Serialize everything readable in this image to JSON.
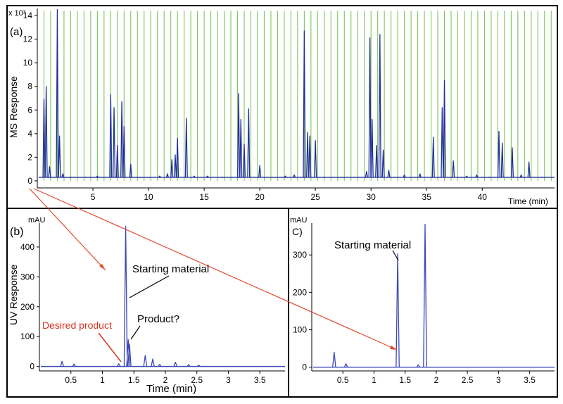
{
  "colors": {
    "ms_trace": "#1f2f9a",
    "uv_trace": "#3b47b8",
    "grid_lines": "#7cc45a",
    "arrow": "#e24a2b",
    "red_label": "#d7301f",
    "axis": "#000000"
  },
  "chart_data": [
    {
      "id": "a",
      "type": "line",
      "panel_label": "(a)",
      "ylabel": "MS Response",
      "y_multiplier": "x 10³",
      "xlabel": "Time (min)",
      "xlim": [
        0,
        46.5
      ],
      "ylim": [
        -0.6,
        14.6
      ],
      "x_ticks": [
        5,
        10,
        15,
        20,
        25,
        30,
        35,
        40
      ],
      "x_tick_labels": [
        "5",
        "10",
        "15",
        "20",
        "25",
        "30",
        "35",
        "40"
      ],
      "y_ticks": [
        0,
        2,
        4,
        6,
        8,
        10,
        12,
        14
      ],
      "y_tick_labels": [
        "0",
        "2",
        "4",
        "6",
        "8",
        "10",
        "12",
        "14"
      ],
      "grid_x_start": 0.6,
      "grid_x_step": 0.6,
      "grid_top": 14.4,
      "peaks": [
        {
          "x": 0.6,
          "y": 6.9
        },
        {
          "x": 0.8,
          "y": 8.0
        },
        {
          "x": 1.1,
          "y": 1.2
        },
        {
          "x": 1.8,
          "y": 14.5
        },
        {
          "x": 2.0,
          "y": 3.8
        },
        {
          "x": 2.3,
          "y": 0.6
        },
        {
          "x": 3.0,
          "y": 0.3
        },
        {
          "x": 4.4,
          "y": 0.3
        },
        {
          "x": 5.4,
          "y": 0.4
        },
        {
          "x": 6.6,
          "y": 7.3
        },
        {
          "x": 6.9,
          "y": 6.2
        },
        {
          "x": 7.2,
          "y": 3.0
        },
        {
          "x": 7.6,
          "y": 6.7
        },
        {
          "x": 7.8,
          "y": 4.6
        },
        {
          "x": 8.4,
          "y": 1.4
        },
        {
          "x": 9.2,
          "y": 0.3
        },
        {
          "x": 11.0,
          "y": 0.4
        },
        {
          "x": 11.7,
          "y": 0.6
        },
        {
          "x": 12.1,
          "y": 1.8
        },
        {
          "x": 12.4,
          "y": 2.2
        },
        {
          "x": 12.6,
          "y": 3.6
        },
        {
          "x": 13.4,
          "y": 5.3
        },
        {
          "x": 14.1,
          "y": 0.4
        },
        {
          "x": 15.3,
          "y": 0.4
        },
        {
          "x": 16.6,
          "y": 0.3
        },
        {
          "x": 18.1,
          "y": 7.4
        },
        {
          "x": 18.3,
          "y": 5.2
        },
        {
          "x": 18.6,
          "y": 3.1
        },
        {
          "x": 19.0,
          "y": 6.1
        },
        {
          "x": 20.0,
          "y": 1.3
        },
        {
          "x": 22.3,
          "y": 0.4
        },
        {
          "x": 23.1,
          "y": 0.5
        },
        {
          "x": 24.0,
          "y": 12.7
        },
        {
          "x": 24.3,
          "y": 4.1
        },
        {
          "x": 24.5,
          "y": 3.8
        },
        {
          "x": 25.0,
          "y": 3.4
        },
        {
          "x": 25.8,
          "y": 0.3
        },
        {
          "x": 29.6,
          "y": 0.8
        },
        {
          "x": 29.9,
          "y": 12.1
        },
        {
          "x": 30.1,
          "y": 5.2
        },
        {
          "x": 30.5,
          "y": 3.0
        },
        {
          "x": 30.8,
          "y": 12.4
        },
        {
          "x": 31.1,
          "y": 2.6
        },
        {
          "x": 31.6,
          "y": 0.9
        },
        {
          "x": 33.0,
          "y": 0.5
        },
        {
          "x": 34.4,
          "y": 0.6
        },
        {
          "x": 35.6,
          "y": 3.7
        },
        {
          "x": 36.4,
          "y": 6.2
        },
        {
          "x": 36.6,
          "y": 8.5
        },
        {
          "x": 37.4,
          "y": 1.7
        },
        {
          "x": 38.6,
          "y": 0.4
        },
        {
          "x": 39.5,
          "y": 0.5
        },
        {
          "x": 40.6,
          "y": 0.3
        },
        {
          "x": 41.5,
          "y": 4.2
        },
        {
          "x": 41.8,
          "y": 3.2
        },
        {
          "x": 42.7,
          "y": 2.8
        },
        {
          "x": 43.5,
          "y": 0.5
        },
        {
          "x": 44.2,
          "y": 1.6
        },
        {
          "x": 45.4,
          "y": 0.3
        }
      ]
    },
    {
      "id": "b",
      "type": "line",
      "panel_label": "(b)",
      "yunit": "mAU",
      "ylabel": "UV Response",
      "xlabel": "Time (min)",
      "xlim": [
        0,
        3.9
      ],
      "ylim": [
        -15,
        480
      ],
      "x_ticks": [
        0.5,
        1,
        1.5,
        2,
        2.5,
        3,
        3.5
      ],
      "x_tick_labels": [
        "0.5",
        "1",
        "1.5",
        "2",
        "2.5",
        "3",
        "3.5"
      ],
      "y_ticks": [
        0,
        100,
        200,
        300,
        400
      ],
      "y_tick_labels": [
        "0",
        "100",
        "200",
        "300",
        "400"
      ],
      "peaks": [
        {
          "x": 0.36,
          "y": 17
        },
        {
          "x": 0.55,
          "y": 8
        },
        {
          "x": 1.26,
          "y": 9
        },
        {
          "x": 1.37,
          "y": 470
        },
        {
          "x": 1.41,
          "y": 90
        },
        {
          "x": 1.43,
          "y": 75
        },
        {
          "x": 1.68,
          "y": 37
        },
        {
          "x": 1.8,
          "y": 25
        },
        {
          "x": 1.91,
          "y": 7
        },
        {
          "x": 2.16,
          "y": 14
        },
        {
          "x": 2.37,
          "y": 6
        },
        {
          "x": 2.53,
          "y": 4
        }
      ],
      "annotations": [
        "Starting material",
        "Product?",
        "Desired product"
      ]
    },
    {
      "id": "c",
      "type": "line",
      "panel_label": "C)",
      "yunit": "mAU",
      "xlim": [
        0,
        3.9
      ],
      "ylim": [
        -10,
        385
      ],
      "x_ticks": [
        0.5,
        1,
        1.5,
        2,
        2.5,
        3,
        3.5
      ],
      "x_tick_labels": [
        "0.5",
        "1",
        "1.5",
        "2",
        "2.5",
        "3",
        "3.5"
      ],
      "y_ticks": [
        0,
        100,
        200,
        300
      ],
      "y_tick_labels": [
        "0",
        "100",
        "200",
        "300"
      ],
      "peaks": [
        {
          "x": 0.36,
          "y": 40
        },
        {
          "x": 0.55,
          "y": 9
        },
        {
          "x": 1.38,
          "y": 303
        },
        {
          "x": 1.82,
          "y": 382
        },
        {
          "x": 1.71,
          "y": 6
        }
      ],
      "annotations": [
        "Starting material"
      ]
    }
  ],
  "annotations": {
    "starting_material_b": "Starting material",
    "product_question": "Product?",
    "desired_product": "Desired product",
    "starting_material_c": "Starting material"
  }
}
